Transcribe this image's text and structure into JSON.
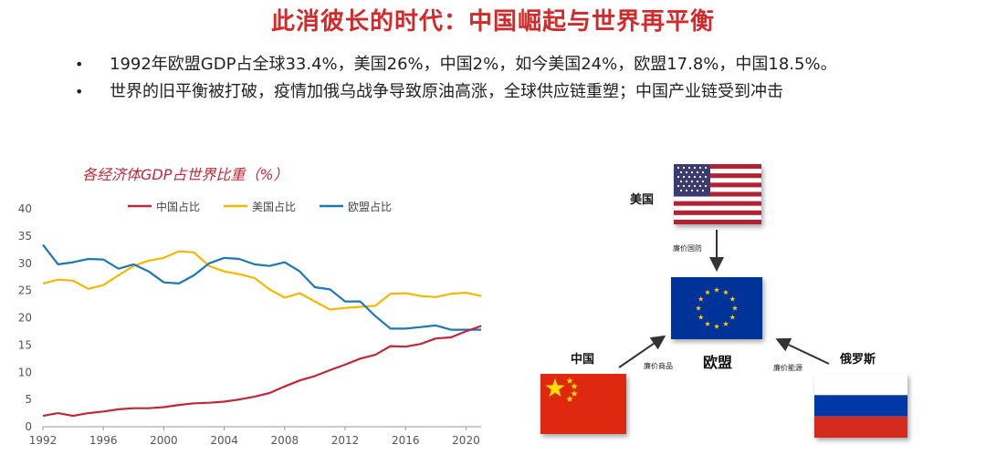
{
  "title": "此消彼长的时代：中国崛起与世界再平衡",
  "bullets": [
    "1992年欧盟GDP占全球33.4%，美国26%，中国2%，如今美国24%，欧盟17.8%，中国18.5%。",
    "世界的旧平衡被打破，疫情加俄乌战争导致原油高涨，全球供应链重塑；中国产业链受到冲击"
  ],
  "bullet_marker": "•",
  "chart_data": {
    "type": "line",
    "title": "各经济体GDP占世界比重（%）",
    "xlabel": "",
    "ylabel": "",
    "xlim": [
      1992,
      2021
    ],
    "ylim": [
      0,
      40
    ],
    "x_ticks": [
      1992,
      1996,
      2000,
      2004,
      2008,
      2012,
      2016,
      2020
    ],
    "y_ticks": [
      0,
      5,
      10,
      15,
      20,
      25,
      30,
      35,
      40
    ],
    "grid": false,
    "legend": "top",
    "x": [
      1992,
      1993,
      1994,
      1995,
      1996,
      1997,
      1998,
      1999,
      2000,
      2001,
      2002,
      2003,
      2004,
      2005,
      2006,
      2007,
      2008,
      2009,
      2010,
      2011,
      2012,
      2013,
      2014,
      2015,
      2016,
      2017,
      2018,
      2019,
      2020,
      2021
    ],
    "series": [
      {
        "name": "中国占比",
        "color": "#c0283a",
        "values": [
          2.0,
          2.5,
          2.0,
          2.5,
          2.8,
          3.2,
          3.4,
          3.4,
          3.6,
          4.0,
          4.3,
          4.4,
          4.6,
          5.0,
          5.5,
          6.2,
          7.4,
          8.5,
          9.3,
          10.4,
          11.4,
          12.5,
          13.2,
          14.8,
          14.7,
          15.2,
          16.2,
          16.4,
          17.5,
          18.5
        ]
      },
      {
        "name": "美国占比",
        "color": "#f5b800",
        "values": [
          26.3,
          27.0,
          26.8,
          25.3,
          26.0,
          27.8,
          29.5,
          30.5,
          31.0,
          32.2,
          32.0,
          29.5,
          28.5,
          28.0,
          27.3,
          25.2,
          23.7,
          24.5,
          23.0,
          21.5,
          21.8,
          22.0,
          22.2,
          24.4,
          24.5,
          24.0,
          23.8,
          24.4,
          24.6,
          24.0
        ]
      },
      {
        "name": "欧盟占比",
        "color": "#1f77b4",
        "values": [
          33.4,
          29.8,
          30.2,
          30.8,
          30.7,
          29.0,
          29.8,
          28.5,
          26.5,
          26.3,
          27.8,
          30.0,
          31.0,
          30.8,
          29.8,
          29.5,
          30.2,
          28.5,
          25.6,
          25.2,
          23.0,
          23.0,
          20.3,
          18.0,
          18.0,
          18.3,
          18.6,
          17.8,
          17.8,
          17.8
        ]
      }
    ]
  },
  "diagram": {
    "nodes": {
      "usa": {
        "label": "美国",
        "flag": "us-flag"
      },
      "eu": {
        "label": "欧盟",
        "flag": "eu-flag"
      },
      "china": {
        "label": "中国",
        "flag": "china-flag"
      },
      "russia": {
        "label": "俄罗斯",
        "flag": "russia-flag"
      }
    },
    "edges": {
      "usa_eu": "廉价国防",
      "china_eu": "廉价商品",
      "russia_eu": "廉价能源"
    }
  }
}
